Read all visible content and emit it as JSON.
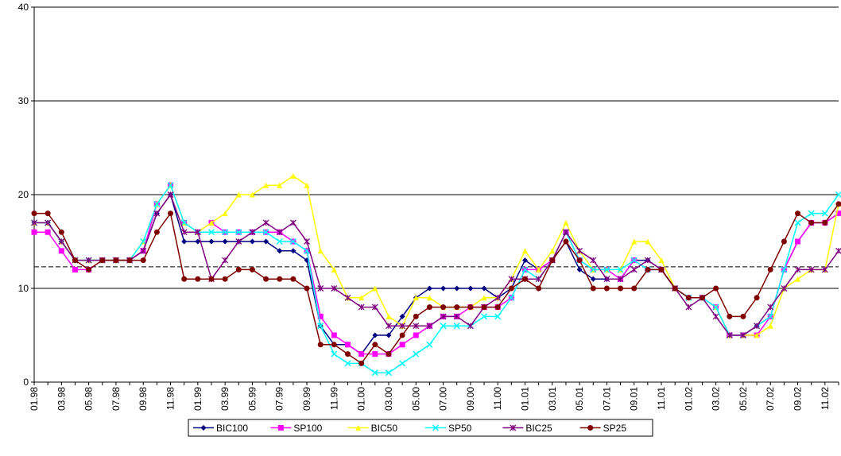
{
  "chart_data": {
    "type": "line",
    "categories": [
      "01.98",
      null,
      "03.98",
      null,
      "05.98",
      null,
      "07.98",
      null,
      "09.98",
      null,
      "11.98",
      null,
      "01.99",
      null,
      "03.99",
      null,
      "05.99",
      null,
      "07.99",
      null,
      "09.99",
      null,
      "11.99",
      null,
      "01.00",
      null,
      "03.00",
      null,
      "05.00",
      null,
      "07.00",
      null,
      "09.00",
      null,
      "11.00",
      null,
      "01.01",
      null,
      "03.01",
      null,
      "05.01",
      null,
      "07.01",
      null,
      "09.01",
      null,
      "11.01",
      null,
      "01.02",
      null,
      "03.02",
      null,
      "05.02",
      null,
      "07.02",
      null,
      "09.02",
      null,
      "11.02",
      null
    ],
    "series": [
      {
        "name": "BIC100",
        "color": "#000080",
        "marker": "diamond",
        "values": [
          17,
          17,
          15,
          13,
          13,
          13,
          13,
          13,
          14,
          18,
          20,
          15,
          15,
          15,
          15,
          15,
          15,
          15,
          14,
          14,
          13,
          6,
          4,
          4,
          3,
          5,
          5,
          7,
          9,
          10,
          10,
          10,
          10,
          10,
          9,
          10,
          13,
          12,
          13,
          15,
          12,
          11,
          11,
          11,
          13,
          13,
          12,
          10,
          9,
          9,
          8,
          5,
          5,
          6,
          7,
          12,
          15,
          17,
          17,
          18
        ]
      },
      {
        "name": "SP100",
        "color": "#FF00FF",
        "marker": "square",
        "values": [
          16,
          16,
          14,
          12,
          12,
          13,
          13,
          13,
          14,
          19,
          21,
          17,
          16,
          17,
          16,
          16,
          16,
          16,
          16,
          15,
          14,
          7,
          5,
          4,
          3,
          3,
          3,
          4,
          5,
          6,
          7,
          7,
          8,
          8,
          8,
          9,
          12,
          12,
          13,
          16,
          13,
          12,
          12,
          11,
          13,
          12,
          12,
          10,
          9,
          9,
          8,
          5,
          5,
          5,
          7,
          12,
          15,
          17,
          17,
          18
        ]
      },
      {
        "name": "BIC50",
        "color": "#FFFF00",
        "marker": "triangle",
        "values": [
          17,
          17,
          15,
          13,
          13,
          13,
          13,
          13,
          15,
          19,
          21,
          17,
          16,
          17,
          18,
          20,
          20,
          21,
          21,
          22,
          21,
          14,
          12,
          9,
          9,
          10,
          7,
          6,
          9,
          9,
          8,
          8,
          8,
          9,
          9,
          11,
          14,
          12,
          14,
          17,
          14,
          12,
          12,
          12,
          15,
          15,
          13,
          10,
          9,
          9,
          8,
          5,
          5,
          5,
          6,
          10,
          11,
          12,
          12,
          19
        ]
      },
      {
        "name": "SP50",
        "color": "#00FFFF",
        "marker": "x",
        "values": [
          17,
          17,
          15,
          13,
          13,
          13,
          13,
          13,
          15,
          19,
          21,
          17,
          16,
          16,
          16,
          16,
          16,
          16,
          15,
          15,
          14,
          6,
          3,
          2,
          2,
          1,
          1,
          2,
          3,
          4,
          6,
          6,
          6,
          7,
          7,
          9,
          12,
          11,
          13,
          16,
          13,
          12,
          12,
          12,
          13,
          12,
          12,
          10,
          9,
          9,
          8,
          5,
          5,
          6,
          7,
          12,
          17,
          18,
          18,
          20
        ]
      },
      {
        "name": "BIC25",
        "color": "#800080",
        "marker": "star",
        "values": [
          17,
          17,
          15,
          13,
          13,
          13,
          13,
          13,
          14,
          18,
          20,
          16,
          16,
          11,
          13,
          15,
          16,
          17,
          16,
          17,
          15,
          10,
          10,
          9,
          8,
          8,
          6,
          6,
          6,
          6,
          7,
          7,
          6,
          8,
          9,
          11,
          11,
          11,
          13,
          16,
          14,
          13,
          11,
          11,
          12,
          13,
          12,
          10,
          8,
          9,
          7,
          5,
          5,
          6,
          8,
          10,
          12,
          12,
          12,
          14
        ]
      },
      {
        "name": "SP25",
        "color": "#800000",
        "marker": "circle",
        "values": [
          18,
          18,
          16,
          13,
          12,
          13,
          13,
          13,
          13,
          16,
          18,
          11,
          11,
          11,
          11,
          12,
          12,
          11,
          11,
          11,
          10,
          4,
          4,
          3,
          2,
          4,
          3,
          5,
          7,
          8,
          8,
          8,
          8,
          8,
          8,
          10,
          11,
          10,
          13,
          15,
          13,
          10,
          10,
          10,
          10,
          12,
          12,
          10,
          9,
          9,
          10,
          7,
          7,
          9,
          12,
          15,
          18,
          17,
          17,
          19
        ]
      }
    ],
    "reference_line": 12.3,
    "ylim": [
      0,
      40
    ],
    "yticks": [
      0,
      10,
      20,
      30,
      40
    ],
    "grid": true,
    "legend_position": "bottom"
  }
}
